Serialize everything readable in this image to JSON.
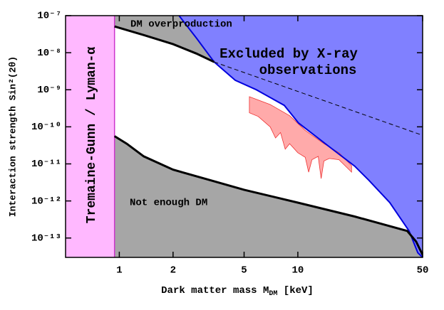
{
  "chart_data": {
    "type": "area",
    "log_x": true,
    "log_y": true,
    "xlim": [
      0.5,
      50
    ],
    "ylim": [
      3e-14,
      1e-07
    ],
    "xticks": [
      1,
      2,
      5,
      10,
      50
    ],
    "yticks": [
      {
        "value": 1e-07,
        "label": "10⁻⁷"
      },
      {
        "value": 1e-08,
        "label": "10⁻⁸"
      },
      {
        "value": 1e-09,
        "label": "10⁻⁹"
      },
      {
        "value": 1e-10,
        "label": "10⁻¹⁰"
      },
      {
        "value": 1e-11,
        "label": "10⁻¹¹"
      },
      {
        "value": 1e-12,
        "label": "10⁻¹²"
      },
      {
        "value": 1e-13,
        "label": "10⁻¹³"
      }
    ],
    "xlabel": [
      "Dark matter mass M",
      "DM",
      " [keV]"
    ],
    "ylabel": "Interaction strength Sin²(2θ)",
    "annotations": {
      "overproduction": "DM overproduction",
      "xray": [
        "Excluded by X-ray",
        "observations"
      ],
      "bound": "Tremaine-Gunn / Lyman-α",
      "underproduction": "Not enough DM"
    },
    "tremaine_gunn": 0.94,
    "upper_curve": {
      "x": [
        0.94,
        1.37,
        2,
        2.7,
        3.4
      ],
      "values": [
        5.1e-08,
        3e-08,
        1.7e-08,
        9.5e-09,
        5.6e-09
      ]
    },
    "dashed_curve": {
      "x": [
        3.4,
        50
      ],
      "values": [
        5.6e-09,
        5.9e-11
      ]
    },
    "lower_curve": {
      "x": [
        0.94,
        1.1,
        1.37,
        2,
        5,
        10,
        20.8,
        41,
        46,
        50
      ],
      "values": [
        5.6e-11,
        3.5e-11,
        1.6e-11,
        7e-12,
        2e-12,
        9e-13,
        3.8e-13,
        1.55e-13,
        8e-14,
        3.5e-14
      ]
    },
    "xray_boundary": {
      "x": [
        2.16,
        2.7,
        3.4,
        4.46,
        5.85,
        8.4,
        10.1,
        14.5,
        20.8,
        25,
        32.7,
        42,
        47,
        50
      ],
      "values": [
        1e-07,
        2.5e-08,
        5.6e-09,
        1.8e-09,
        1e-09,
        3.8e-10,
        1.26e-10,
        3.3e-11,
        8.7e-12,
        3.6e-12,
        9.1e-13,
        1.55e-13,
        4e-14,
        3e-14
      ]
    },
    "red_upper": {
      "x": [
        5.35,
        7,
        9,
        11,
        14,
        17,
        20
      ],
      "values": [
        6.5e-10,
        4e-10,
        2e-10,
        8e-11,
        3.5e-11,
        2e-11,
        9e-12
      ]
    },
    "red_lower": {
      "x": [
        20,
        17,
        15,
        14,
        13.5,
        13,
        12,
        11.5,
        11,
        10,
        9,
        8.5,
        8,
        7.5,
        7,
        6,
        5.35
      ],
      "values": [
        6e-12,
        1.3e-11,
        1.4e-11,
        1.2e-11,
        4e-12,
        1.6e-11,
        1.3e-11,
        6e-12,
        1.5e-11,
        2e-11,
        3.5e-11,
        2.5e-11,
        7e-11,
        5e-11,
        1e-10,
        1.9e-10,
        2.4e-10
      ]
    },
    "colors": {
      "excluded": "#8080ff",
      "excluded_edge": "#0000dd",
      "gray": "#a6a6a6",
      "bound": "#ffb8ff",
      "bound_edge": "#cc33cc",
      "red": "#ffaaaa",
      "red_edge": "#ee3333"
    }
  }
}
